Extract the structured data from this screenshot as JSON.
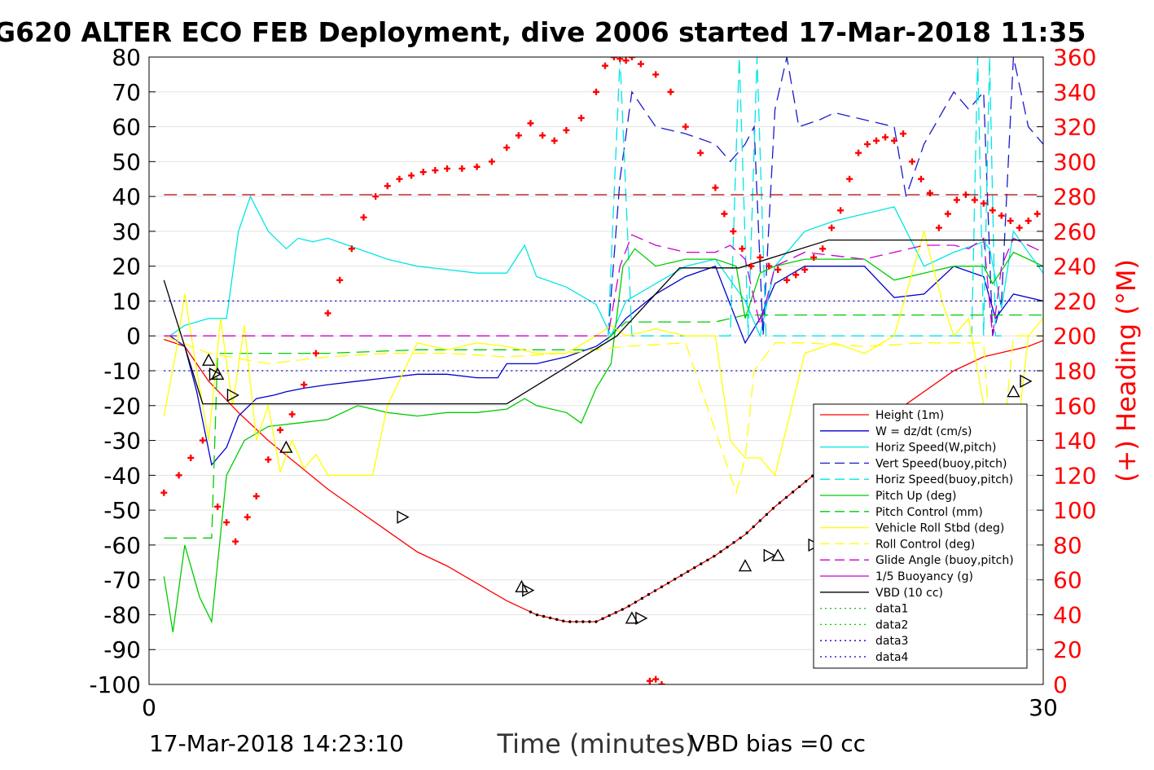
{
  "title": "G620 ALTER ECO FEB Deployment, dive 2006 started 17-Mar-2018 11:35",
  "footer": {
    "left": "17-Mar-2018 14:23:10",
    "right": "VBD bias =0 cc"
  },
  "chart_data": {
    "type": "line",
    "xlabel": "Time (minutes)",
    "ylabel": "",
    "y2label": "(+) Heading (°M)",
    "xlim": [
      0,
      30
    ],
    "ylim": [
      -100,
      80
    ],
    "y2lim": [
      0,
      360
    ],
    "xticks": [
      "0",
      "30"
    ],
    "yticks": [
      "80",
      "70",
      "60",
      "50",
      "40",
      "30",
      "20",
      "10",
      "0",
      "-10",
      "-20",
      "-30",
      "-40",
      "-50",
      "-60",
      "-70",
      "-80",
      "-90",
      "-100"
    ],
    "y2ticks": [
      "360",
      "340",
      "320",
      "300",
      "280",
      "260",
      "240",
      "220",
      "200",
      "180",
      "160",
      "140",
      "120",
      "100",
      "80",
      "60",
      "40",
      "20",
      "0"
    ],
    "grid": true,
    "legend_position": "bottom-right",
    "colors": {
      "height": "#ff0000",
      "w": "#0000cc",
      "horiz_w": "#00e6e6",
      "vert_buoy": "#1a1acc",
      "horiz_buoy": "#00e6e6",
      "pitch_up": "#00cc00",
      "pitch_ctrl": "#00cc00",
      "roll": "#ffff00",
      "roll_ctrl": "#ffff00",
      "glide": "#cc00cc",
      "buoyancy": "#cc00cc",
      "vbd": "#000000",
      "heading": "#ff0000",
      "dark_red": "#b00000"
    },
    "legend": [
      {
        "name": "Height (1m)",
        "color": "#ff0000",
        "dash": "solid"
      },
      {
        "name": "W = dz/dt (cm/s)",
        "color": "#0000cc",
        "dash": "solid"
      },
      {
        "name": "Horiz Speed(W,pitch)",
        "color": "#00e6e6",
        "dash": "solid"
      },
      {
        "name": "Vert Speed(buoy,pitch)",
        "color": "#1a1acc",
        "dash": "dashed"
      },
      {
        "name": "Horiz Speed(buoy,pitch)",
        "color": "#00e6e6",
        "dash": "dashed"
      },
      {
        "name": "Pitch Up (deg)",
        "color": "#00cc00",
        "dash": "solid"
      },
      {
        "name": "Pitch Control (mm)",
        "color": "#00cc00",
        "dash": "dashed"
      },
      {
        "name": "Vehicle Roll Stbd (deg)",
        "color": "#ffff00",
        "dash": "solid"
      },
      {
        "name": "Roll Control (deg)",
        "color": "#ffff00",
        "dash": "dashed"
      },
      {
        "name": "Glide Angle (buoy,pitch)",
        "color": "#cc00cc",
        "dash": "dashed"
      },
      {
        "name": "1/5 Buoyancy (g)",
        "color": "#cc00cc",
        "dash": "solid"
      },
      {
        "name": "VBD (10 cc)",
        "color": "#000000",
        "dash": "solid"
      },
      {
        "name": "data1",
        "color": "#00cc00",
        "dash": "dotted"
      },
      {
        "name": "data2",
        "color": "#00cc00",
        "dash": "dotted"
      },
      {
        "name": "data3",
        "color": "#0000cc",
        "dash": "dotted"
      },
      {
        "name": "data4",
        "color": "#0000cc",
        "dash": "dotted"
      }
    ],
    "series": [
      {
        "key": "height",
        "style": "solid",
        "x": [
          0.5,
          1.2,
          2,
          3,
          4,
          5,
          6,
          7,
          8,
          9,
          10,
          11,
          12,
          13,
          14,
          15,
          16,
          17,
          18,
          19,
          20,
          21,
          22,
          23,
          24,
          25,
          26,
          27,
          28,
          29.5,
          30.4
        ],
        "y": [
          -1,
          -3,
          -13,
          -22,
          -30,
          -37,
          -44,
          -50,
          -56,
          -62,
          -66,
          -71,
          -76,
          -80,
          -82,
          -82,
          -78,
          -73,
          -68,
          -63,
          -57,
          -49,
          -42,
          -35,
          -28,
          -22,
          -16,
          -10,
          -6,
          -3,
          0
        ]
      },
      {
        "key": "w",
        "style": "solid",
        "x": [
          0.7,
          1.2,
          1.6,
          2.1,
          2.6,
          3,
          3.6,
          4.2,
          4.6,
          5.2,
          6,
          7,
          8,
          9,
          10,
          11,
          11.7,
          12,
          13,
          14,
          15,
          15.5,
          16,
          17,
          18,
          19,
          20,
          20.5,
          21,
          22,
          23,
          24,
          25,
          26,
          27,
          28,
          28.4,
          29,
          30,
          30.5
        ],
        "y": [
          0,
          -3,
          -16,
          -37,
          -32,
          -23,
          -18,
          -17,
          -16,
          -15,
          -14,
          -13,
          -12,
          -11,
          -11,
          -12,
          -12,
          -8,
          -8,
          -6,
          -3,
          0,
          5,
          12,
          17,
          20,
          -2,
          5,
          15,
          20,
          20,
          20,
          11,
          12,
          20,
          17,
          5,
          12,
          10,
          16
        ]
      },
      {
        "key": "horiz_w",
        "style": "solid",
        "x": [
          0.7,
          1.2,
          2,
          2.6,
          3,
          3.4,
          4,
          4.6,
          5,
          5.5,
          6,
          7,
          8,
          9,
          10,
          11,
          12,
          12.6,
          13,
          14,
          15,
          15.5,
          16,
          17,
          18,
          19,
          20,
          20.5,
          21,
          22,
          23,
          24,
          25,
          26,
          27,
          28,
          28.2,
          28.6,
          29,
          30,
          30.5
        ],
        "y": [
          0,
          3,
          5,
          5,
          30,
          40,
          30,
          25,
          28,
          27,
          28,
          25,
          22,
          20,
          19,
          18,
          18,
          26,
          17,
          14,
          9,
          0,
          10,
          15,
          20,
          22,
          10,
          0,
          20,
          30,
          33,
          35,
          37,
          20,
          24,
          27,
          25,
          8,
          30,
          18,
          25
        ]
      },
      {
        "key": "vert_buoy",
        "style": "dashed",
        "x": [
          15.4,
          15.8,
          16.2,
          17,
          18,
          19,
          19.5,
          20,
          20.3,
          20.6,
          21,
          21.4,
          21.8,
          22.5,
          23,
          24,
          25,
          25.4,
          26,
          27,
          27.5,
          28,
          28.3,
          28.6,
          29,
          29.5,
          30,
          30.3
        ],
        "y": [
          0,
          45,
          70,
          60,
          58,
          55,
          50,
          55,
          60,
          0,
          65,
          80,
          60,
          62,
          64,
          62,
          60,
          40,
          55,
          70,
          65,
          70,
          0,
          10,
          80,
          60,
          55,
          50
        ]
      },
      {
        "key": "horiz_buoy",
        "style": "dashed",
        "x": [
          15.4,
          15.8,
          16.2,
          19.5,
          19.8,
          20.1,
          20.4,
          20.7,
          27.6,
          27.8,
          28,
          28.2,
          28.4,
          28.6
        ],
        "y": [
          0,
          80,
          0,
          0,
          80,
          0,
          80,
          0,
          0,
          80,
          0,
          80,
          0,
          0
        ]
      },
      {
        "key": "pitch_up",
        "style": "solid",
        "x": [
          0.5,
          0.8,
          1.2,
          1.7,
          2.1,
          2.6,
          3.2,
          4,
          5,
          6,
          7,
          8,
          9,
          10,
          11,
          12,
          12.6,
          13,
          14,
          14.5,
          15,
          15.5,
          15.9,
          16.3,
          17,
          18,
          19,
          19.7,
          20,
          20.5,
          21,
          22,
          23,
          24,
          25,
          26,
          27,
          28,
          28.3,
          28.7,
          29,
          30,
          30.5
        ],
        "y": [
          -69,
          -85,
          -60,
          -75,
          -82,
          -40,
          -30,
          -26,
          -25,
          -24,
          -20,
          -22,
          -23,
          -22,
          -22,
          -21,
          -18,
          -20,
          -22,
          -25,
          -15,
          -8,
          20,
          25,
          20,
          22,
          22,
          20,
          5,
          18,
          20,
          22,
          22,
          22,
          16,
          18,
          20,
          20,
          15,
          20,
          24,
          20,
          20
        ]
      },
      {
        "key": "pitch_ctrl",
        "style": "dashed",
        "x": [
          0.5,
          1.2,
          1.7,
          2.1,
          2.3,
          3,
          6,
          9,
          12,
          15,
          16,
          19,
          20,
          30.5
        ],
        "y": [
          -58,
          -58,
          -58,
          -58,
          -5,
          -5,
          -5,
          -4,
          -4,
          -4,
          4,
          4,
          6,
          6
        ]
      },
      {
        "key": "roll",
        "style": "solid",
        "x": [
          0.5,
          0.9,
          1.2,
          1.6,
          2,
          2.4,
          2.8,
          3.2,
          3.6,
          4,
          4.4,
          4.8,
          5.2,
          5.6,
          6,
          6.5,
          7,
          7.5,
          8,
          9,
          10,
          11,
          12,
          13,
          14,
          15,
          15.5,
          16,
          17,
          18,
          19,
          19.5,
          20,
          20.5,
          21,
          22,
          23,
          24,
          25,
          26,
          26.6,
          27,
          27.5,
          28,
          28.5,
          29,
          29.5,
          30,
          30.5
        ],
        "y": [
          -23,
          -5,
          12,
          -10,
          -30,
          5,
          -20,
          3,
          -30,
          -20,
          -39,
          -30,
          -38,
          -34,
          -40,
          -40,
          -40,
          -40,
          -20,
          -2,
          -4,
          -2,
          -3,
          -5,
          -5,
          0,
          3,
          0,
          2,
          0,
          0,
          -30,
          -35,
          -35,
          -40,
          -5,
          -2,
          -5,
          0,
          30,
          10,
          0,
          5,
          -20,
          -40,
          -38,
          0,
          5,
          2
        ]
      },
      {
        "key": "roll_ctrl",
        "style": "dashed",
        "x": [
          0.5,
          2,
          4,
          6,
          8,
          10,
          12,
          14,
          16,
          18,
          19.7,
          20,
          20.3,
          21,
          22,
          24,
          26,
          28,
          28.3,
          28.6,
          29,
          30.5
        ],
        "y": [
          0,
          -5,
          -8,
          -6,
          -5,
          -5,
          -6,
          -5,
          -3,
          -2,
          -45,
          -35,
          -10,
          -2,
          -2,
          -3,
          -2,
          -2,
          -40,
          -35,
          0,
          0
        ]
      },
      {
        "key": "glide",
        "style": "dashed",
        "x": [
          0.5,
          15.4,
          15.8,
          16.2,
          17,
          18,
          19,
          19.5,
          20,
          20.5,
          21,
          22,
          23,
          24,
          25,
          26,
          27,
          27.5,
          28,
          28.3,
          28.6,
          29,
          30,
          30.5
        ],
        "y": [
          0,
          0,
          20,
          29,
          26,
          24,
          24,
          26,
          22,
          3,
          20,
          24,
          23,
          22,
          24,
          26,
          26,
          25,
          28,
          0,
          20,
          28,
          24,
          25
        ]
      },
      {
        "key": "vbd",
        "style": "solid",
        "x": [
          0.5,
          1.8,
          12,
          15.7,
          17.8,
          18,
          19.8,
          22.8,
          23,
          30.5
        ],
        "y": [
          16,
          -19.5,
          -19.5,
          0,
          19.5,
          19.5,
          19.5,
          27.5,
          27.5,
          27.5
        ]
      },
      {
        "key": "heading",
        "style": "markers",
        "axis": "right",
        "x": [
          0.5,
          1,
          1.4,
          1.8,
          2.3,
          2.6,
          2.9,
          3.3,
          3.6,
          4,
          4.4,
          4.8,
          5.2,
          5.6,
          6,
          6.4,
          6.8,
          7.2,
          7.6,
          8,
          8.4,
          8.8,
          9.2,
          9.6,
          10,
          10.5,
          11,
          11.5,
          12,
          12.4,
          12.8,
          13.2,
          13.6,
          14,
          14.5,
          15,
          15.3,
          15.6,
          15.8,
          16,
          16.2,
          16.5,
          17,
          17.5,
          18,
          18.5,
          19,
          19.3,
          19.6,
          19.9,
          20.2,
          20.5,
          20.8,
          21.1,
          21.4,
          21.7,
          22,
          22.3,
          22.6,
          22.9,
          23.2,
          23.5,
          23.8,
          24.1,
          24.4,
          24.7,
          25,
          25.3,
          25.6,
          25.9,
          26.2,
          26.5,
          26.8,
          27.1,
          27.4,
          27.7,
          28,
          28.3,
          28.6,
          28.9,
          29.2,
          29.5,
          29.8,
          30.1,
          30.4
        ],
        "y": [
          110,
          120,
          130,
          140,
          102,
          93,
          82,
          96,
          108,
          129,
          146,
          155,
          172,
          190,
          213,
          232,
          250,
          268,
          280,
          286,
          290,
          292,
          294,
          295,
          296,
          296,
          297,
          300,
          308,
          315,
          322,
          315,
          312,
          318,
          325,
          340,
          355,
          360,
          359,
          358,
          360,
          356,
          350,
          340,
          320,
          305,
          285,
          270,
          260,
          250,
          240,
          245,
          240,
          238,
          232,
          235,
          238,
          245,
          250,
          262,
          272,
          290,
          305,
          310,
          312,
          314,
          312,
          316,
          300,
          290,
          282,
          262,
          270,
          278,
          281,
          278,
          276,
          272,
          269,
          266,
          262,
          266,
          270,
          274,
          278
        ]
      },
      {
        "key": "heading_low",
        "style": "markers",
        "axis": "right",
        "x": [
          16.8,
          17.0,
          17.2
        ],
        "y": [
          2,
          3,
          0
        ]
      },
      {
        "key": "heading_ref",
        "style": "dashed",
        "axis": "right",
        "x": [
          0.5,
          30.4
        ],
        "y": [
          281,
          281
        ]
      },
      {
        "key": "upper_ref",
        "style": "dotted",
        "x": [
          0.5,
          30.4
        ],
        "y": [
          10,
          10
        ]
      },
      {
        "key": "lower_ref",
        "style": "dotted",
        "x": [
          0.5,
          30.4
        ],
        "y": [
          -10,
          -10
        ]
      },
      {
        "key": "triangles",
        "style": "triangles",
        "x": [
          2.0,
          2.2,
          2.3,
          2.8,
          4.6,
          8.5,
          12.5,
          12.7,
          16.2,
          16.5,
          20,
          20.8,
          21.1,
          22.3,
          26.2,
          26.6,
          27.5,
          27.8,
          29,
          29.4,
          30.4
        ],
        "y": [
          -7,
          -11,
          -11,
          -17,
          -32,
          -52,
          -72,
          -73,
          -81,
          -81,
          -66,
          -63,
          -63,
          -60,
          -34,
          -31,
          -26,
          -25,
          -16,
          -13,
          -8
        ]
      }
    ]
  }
}
